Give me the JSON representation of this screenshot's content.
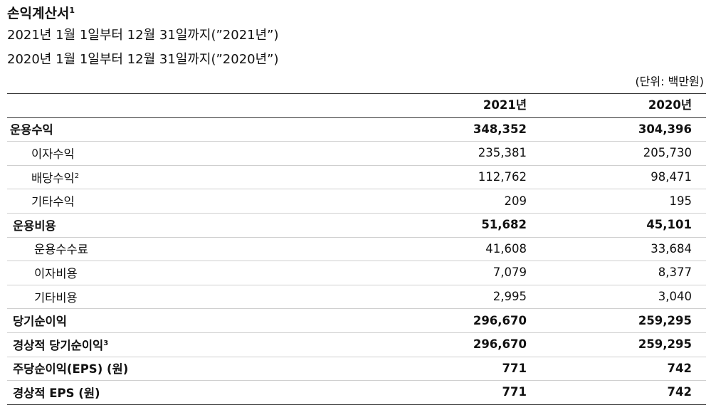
{
  "title": "손익계산서",
  "title_note": "1",
  "period_2021": "2021년 1월 1일부터 12월 31일까지(”2021년”)",
  "period_2020": "2020년 1월 1일부터 12월 31일까지(”2020년”)",
  "unit": "(단위: 백만원)",
  "columns": [
    "",
    "2021년",
    "2020년"
  ],
  "rows": [
    {
      "label": "운용수익",
      "note": "",
      "v2021": "348,352",
      "v2020": "304,396"
    },
    {
      "label": "이자수익",
      "note": "",
      "v2021": "235,381",
      "v2020": "205,730"
    },
    {
      "label": "배당수익",
      "note": "2",
      "v2021": "112,762",
      "v2020": "98,471"
    },
    {
      "label": "기타수익",
      "note": "",
      "v2021": "209",
      "v2020": "195"
    },
    {
      "label": "운용비용",
      "note": "",
      "v2021": "51,682",
      "v2020": "45,101"
    },
    {
      "label": "운용수수료",
      "note": "",
      "v2021": "41,608",
      "v2020": "33,684"
    },
    {
      "label": "이자비용",
      "note": "",
      "v2021": "7,079",
      "v2020": "8,377"
    },
    {
      "label": "기타비용",
      "note": "",
      "v2021": "2,995",
      "v2020": "3,040"
    },
    {
      "label": "당기순이익",
      "note": "",
      "v2021": "296,670",
      "v2020": "259,295"
    },
    {
      "label": "경상적 당기순이익",
      "note": "3",
      "v2021": "296,670",
      "v2020": "259,295"
    },
    {
      "label": "주당순이익(EPS) (원)",
      "note": "",
      "v2021": "771",
      "v2020": "742"
    },
    {
      "label": "경상적 EPS (원)",
      "note": "",
      "v2021": "771",
      "v2020": "742"
    }
  ]
}
